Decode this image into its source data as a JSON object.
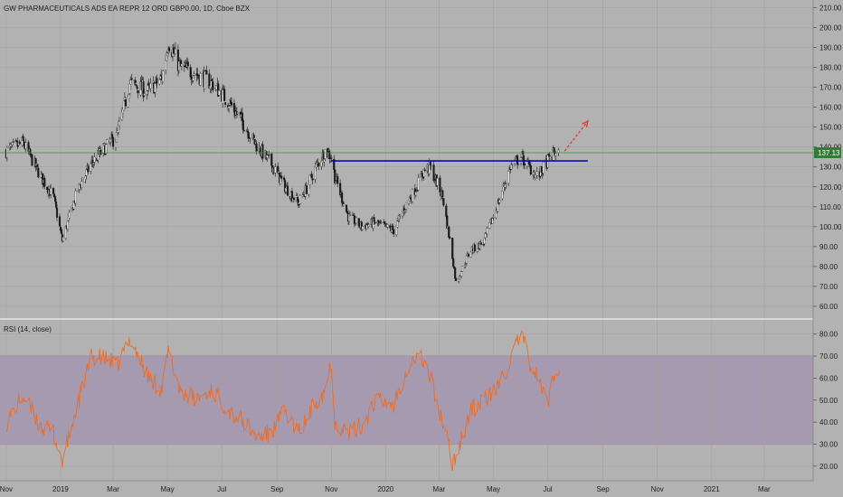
{
  "chart_data": [
    {
      "type": "candlestick",
      "title": "GW PHARMACEUTICALS ADS EA REPR 12 ORD GBP0.00, 1D, Cboe BZX",
      "ylim": [
        55,
        212
      ],
      "yticks": [
        "210.00",
        "200.00",
        "190.00",
        "180.00",
        "170.00",
        "160.00",
        "150.00",
        "140.00",
        "130.00",
        "120.00",
        "110.00",
        "100.00",
        "90.00",
        "80.00",
        "70.00",
        "60.00"
      ],
      "last_price": "137.13",
      "x_dates": [
        "2018-11-01",
        "2018-11-20",
        "2018-12-10",
        "2018-12-24",
        "2019-01-03",
        "2019-01-20",
        "2019-02-05",
        "2019-02-25",
        "2019-03-05",
        "2019-03-20",
        "2019-04-10",
        "2019-04-25",
        "2019-05-02",
        "2019-05-15",
        "2019-06-01",
        "2019-06-20",
        "2019-07-10",
        "2019-07-25",
        "2019-08-10",
        "2019-08-25",
        "2019-09-10",
        "2019-09-25",
        "2019-10-03",
        "2019-10-15",
        "2019-10-25",
        "2019-11-01",
        "2019-11-05",
        "2019-11-20",
        "2019-12-05",
        "2019-12-20",
        "2020-01-10",
        "2020-01-25",
        "2020-02-05",
        "2020-02-13",
        "2020-02-20",
        "2020-03-05",
        "2020-03-16",
        "2020-03-20",
        "2020-04-05",
        "2020-04-20",
        "2020-05-05",
        "2020-05-20",
        "2020-06-01",
        "2020-06-10",
        "2020-06-20",
        "2020-07-01",
        "2020-07-10",
        "2020-07-14"
      ],
      "x_close": [
        138,
        142,
        125,
        115,
        93,
        118,
        132,
        142,
        145,
        172,
        168,
        175,
        193,
        180,
        177,
        172,
        162,
        152,
        140,
        132,
        120,
        112,
        118,
        130,
        138,
        135,
        125,
        105,
        100,
        102,
        98,
        112,
        120,
        128,
        130,
        115,
        85,
        72,
        88,
        92,
        110,
        130,
        135,
        130,
        125,
        133,
        138,
        137
      ],
      "horizontal_line": {
        "x_start": "2019-11-01",
        "x_end": "2020-08-15",
        "y": 133,
        "color": "#0a0aa8"
      },
      "arrow": {
        "x_start": "2020-07-20",
        "y_start": 138,
        "x_end": "2020-08-15",
        "y_end": 153,
        "color": "#e8312a"
      },
      "price_line": {
        "y": 137.13,
        "color": "#3f8f3f"
      }
    },
    {
      "type": "line",
      "title": "RSI (14, close)",
      "ylim": [
        15,
        84
      ],
      "yticks": [
        "80.00",
        "70.00",
        "60.00",
        "50.00",
        "40.00",
        "30.00",
        "20.00"
      ],
      "band": [
        30,
        70
      ],
      "band_color": "#9b86ae",
      "x": [
        "2018-11-01",
        "2018-11-20",
        "2018-12-10",
        "2018-12-24",
        "2019-01-03",
        "2019-01-20",
        "2019-02-05",
        "2019-02-25",
        "2019-03-05",
        "2019-03-20",
        "2019-04-10",
        "2019-04-25",
        "2019-05-02",
        "2019-05-15",
        "2019-06-01",
        "2019-06-20",
        "2019-07-10",
        "2019-07-25",
        "2019-08-10",
        "2019-08-25",
        "2019-09-10",
        "2019-09-25",
        "2019-10-03",
        "2019-10-15",
        "2019-10-25",
        "2019-11-01",
        "2019-11-05",
        "2019-11-20",
        "2019-12-05",
        "2019-12-20",
        "2020-01-10",
        "2020-01-25",
        "2020-02-05",
        "2020-02-13",
        "2020-02-20",
        "2020-03-05",
        "2020-03-16",
        "2020-03-20",
        "2020-04-05",
        "2020-04-20",
        "2020-05-05",
        "2020-05-20",
        "2020-06-01",
        "2020-06-10",
        "2020-06-20",
        "2020-07-01",
        "2020-07-10",
        "2020-07-14"
      ],
      "values": [
        40,
        52,
        38,
        35,
        22,
        48,
        70,
        68,
        65,
        78,
        60,
        55,
        72,
        55,
        50,
        55,
        45,
        40,
        33,
        35,
        45,
        35,
        40,
        50,
        55,
        68,
        40,
        35,
        38,
        50,
        48,
        65,
        70,
        68,
        60,
        40,
        22,
        25,
        45,
        50,
        55,
        68,
        80,
        68,
        60,
        48,
        65,
        63
      ],
      "line_color": "#f26b1f"
    }
  ],
  "x_axis_labels": [
    {
      "label": "Nov",
      "date": "2018-11-01"
    },
    {
      "label": "2019",
      "date": "2019-01-01"
    },
    {
      "label": "Mar",
      "date": "2019-03-01"
    },
    {
      "label": "May",
      "date": "2019-05-01"
    },
    {
      "label": "Jul",
      "date": "2019-07-01"
    },
    {
      "label": "Sep",
      "date": "2019-09-01"
    },
    {
      "label": "Nov",
      "date": "2019-11-01"
    },
    {
      "label": "2020",
      "date": "2020-01-01"
    },
    {
      "label": "Mar",
      "date": "2020-03-01"
    },
    {
      "label": "May",
      "date": "2020-05-01"
    },
    {
      "label": "Jul",
      "date": "2020-07-01"
    },
    {
      "label": "Sep",
      "date": "2020-09-01"
    },
    {
      "label": "Nov",
      "date": "2020-11-01"
    },
    {
      "label": "2021",
      "date": "2021-01-01"
    },
    {
      "label": "Mar",
      "date": "2021-03-01"
    }
  ],
  "colors": {
    "background": "#b2b2b2",
    "up_candle": "#e8e8e8",
    "down_candle": "#1a1a1a",
    "grid": "#a3a3a3",
    "axis_text": "#222222",
    "price_label_bg": "#2f7d32"
  }
}
